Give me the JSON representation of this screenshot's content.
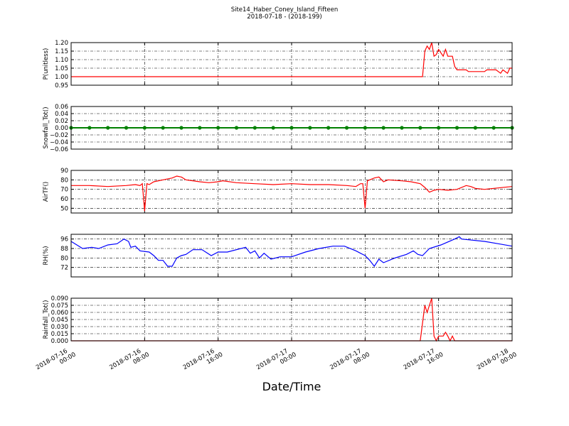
{
  "title": "Site14_Haber_Coney_Island_Fifteen",
  "subtitle": "2018-07-18 - (2018-199)",
  "xaxis": {
    "xlabel": "Date/Time",
    "xlim": [
      "2018-07-16 00:00",
      "2018-07-18 00:00"
    ],
    "xticks": [
      "2018-07-16 00:00",
      "2018-07-16 08:00",
      "2018-07-16 16:00",
      "2018-07-17 00:00",
      "2018-07-17 08:00",
      "2018-07-17 16:00",
      "2018-07-18 00:00"
    ],
    "grid": true
  },
  "chart_data": [
    {
      "type": "line",
      "ylabel": "P(unitless)",
      "color": "#ff0000",
      "ylim": [
        0.95,
        1.2
      ],
      "yticks": [
        0.95,
        {
          "value": 1.0,
          "label": "1.00"
        },
        1.05,
        {
          "value": 1.1,
          "label": "1.10"
        },
        1.15,
        {
          "value": 1.2,
          "label": "1.20"
        }
      ],
      "x": [
        "2018-07-16 00:00",
        "2018-07-17 14:15",
        "2018-07-17 14:30",
        "2018-07-17 14:45",
        "2018-07-17 15:00",
        "2018-07-17 15:15",
        "2018-07-17 15:30",
        "2018-07-17 15:45",
        "2018-07-17 16:00",
        "2018-07-17 16:15",
        "2018-07-17 16:30",
        "2018-07-17 16:45",
        "2018-07-17 17:00",
        "2018-07-17 17:30",
        "2018-07-17 17:45",
        "2018-07-17 18:00",
        "2018-07-17 19:00",
        "2018-07-17 19:15",
        "2018-07-17 21:00",
        "2018-07-17 21:15",
        "2018-07-17 22:15",
        "2018-07-17 22:45",
        "2018-07-17 23:00",
        "2018-07-17 23:30",
        "2018-07-17 23:45",
        "2018-07-18 00:00"
      ],
      "values": [
        1.0,
        1.0,
        1.15,
        1.18,
        1.16,
        1.2,
        1.12,
        1.13,
        1.16,
        1.14,
        1.12,
        1.16,
        1.12,
        1.12,
        1.06,
        1.04,
        1.04,
        1.03,
        1.03,
        1.04,
        1.04,
        1.02,
        1.04,
        1.02,
        1.05,
        1.05
      ]
    },
    {
      "type": "line",
      "ylabel": "Snowfall_Tot()",
      "color": "#008000",
      "marker": "o",
      "ylim": [
        -0.06,
        0.06
      ],
      "yticks": [
        {
          "value": -0.06,
          "label": "−0.06"
        },
        {
          "value": -0.04,
          "label": "−0.04"
        },
        {
          "value": -0.02,
          "label": "−0.02"
        },
        {
          "value": 0,
          "label": "0.00"
        },
        0.02,
        0.04,
        0.06
      ],
      "x": [
        "2018-07-16 00:00",
        "2018-07-16 02:00",
        "2018-07-16 04:00",
        "2018-07-16 06:00",
        "2018-07-16 08:00",
        "2018-07-16 10:00",
        "2018-07-16 12:00",
        "2018-07-16 14:00",
        "2018-07-16 16:00",
        "2018-07-16 18:00",
        "2018-07-16 20:00",
        "2018-07-16 22:00",
        "2018-07-17 00:00",
        "2018-07-17 02:00",
        "2018-07-17 04:00",
        "2018-07-17 06:00",
        "2018-07-17 08:00",
        "2018-07-17 10:00",
        "2018-07-17 12:00",
        "2018-07-17 14:00",
        "2018-07-17 16:00",
        "2018-07-17 18:00",
        "2018-07-17 20:00",
        "2018-07-17 22:00",
        "2018-07-18 00:00"
      ],
      "values": [
        0,
        0,
        0,
        0,
        0,
        0,
        0,
        0,
        0,
        0,
        0,
        0,
        0,
        0,
        0,
        0,
        0,
        0,
        0,
        0,
        0,
        0,
        0,
        0,
        0
      ]
    },
    {
      "type": "line",
      "ylabel": "AirTF()",
      "color": "#ff0000",
      "ylim": [
        45,
        90
      ],
      "yticks": [
        50,
        60,
        70,
        80,
        90
      ],
      "x": [
        "2018-07-16 00:00",
        "2018-07-16 02:00",
        "2018-07-16 04:00",
        "2018-07-16 06:00",
        "2018-07-16 07:00",
        "2018-07-16 07:30",
        "2018-07-16 07:45",
        "2018-07-16 08:00",
        "2018-07-16 08:15",
        "2018-07-16 08:30",
        "2018-07-16 09:00",
        "2018-07-16 10:00",
        "2018-07-16 11:00",
        "2018-07-16 11:30",
        "2018-07-16 12:00",
        "2018-07-16 12:30",
        "2018-07-16 14:00",
        "2018-07-16 15:00",
        "2018-07-16 16:00",
        "2018-07-16 16:30",
        "2018-07-16 18:00",
        "2018-07-16 20:00",
        "2018-07-16 22:00",
        "2018-07-17 00:00",
        "2018-07-17 02:00",
        "2018-07-17 04:00",
        "2018-07-17 06:00",
        "2018-07-17 07:00",
        "2018-07-17 07:30",
        "2018-07-17 07:45",
        "2018-07-17 08:00",
        "2018-07-17 08:15",
        "2018-07-17 09:00",
        "2018-07-17 09:30",
        "2018-07-17 10:00",
        "2018-07-17 10:30",
        "2018-07-17 12:00",
        "2018-07-17 13:00",
        "2018-07-17 14:00",
        "2018-07-17 14:30",
        "2018-07-17 15:00",
        "2018-07-17 15:30",
        "2018-07-17 16:00",
        "2018-07-17 17:00",
        "2018-07-17 18:00",
        "2018-07-17 19:00",
        "2018-07-17 19:30",
        "2018-07-17 20:00",
        "2018-07-17 21:00",
        "2018-07-17 22:00",
        "2018-07-18 00:00"
      ],
      "values": [
        74,
        74,
        73,
        74,
        75,
        74,
        76,
        47,
        76,
        75,
        78,
        80,
        82,
        84,
        83,
        80,
        78,
        77,
        78,
        79,
        77,
        76,
        75,
        76,
        75,
        75,
        74,
        73,
        76,
        76,
        50,
        79,
        82,
        83,
        78,
        80,
        79,
        78,
        76,
        72,
        67,
        69,
        70,
        69,
        70,
        74,
        73,
        71,
        70,
        71,
        73
      ]
    },
    {
      "type": "line",
      "ylabel": "RH(%)",
      "color": "#0000ff",
      "ylim": [
        64,
        100
      ],
      "yticks": [
        72,
        80,
        88,
        96
      ],
      "x": [
        "2018-07-16 00:00",
        "2018-07-16 01:15",
        "2018-07-16 02:15",
        "2018-07-16 03:00",
        "2018-07-16 04:00",
        "2018-07-16 05:00",
        "2018-07-16 05:45",
        "2018-07-16 06:15",
        "2018-07-16 06:30",
        "2018-07-16 07:00",
        "2018-07-16 07:30",
        "2018-07-16 08:30",
        "2018-07-16 09:00",
        "2018-07-16 09:30",
        "2018-07-16 10:00",
        "2018-07-16 10:30",
        "2018-07-16 11:00",
        "2018-07-16 11:30",
        "2018-07-16 12:00",
        "2018-07-16 12:30",
        "2018-07-16 13:15",
        "2018-07-16 14:15",
        "2018-07-16 15:15",
        "2018-07-16 16:00",
        "2018-07-16 17:00",
        "2018-07-16 19:00",
        "2018-07-16 19:30",
        "2018-07-16 20:00",
        "2018-07-16 20:30",
        "2018-07-16 21:00",
        "2018-07-16 21:45",
        "2018-07-16 22:45",
        "2018-07-17 00:00",
        "2018-07-17 01:30",
        "2018-07-17 03:00",
        "2018-07-17 04:30",
        "2018-07-17 05:45",
        "2018-07-17 07:00",
        "2018-07-17 08:00",
        "2018-07-17 08:30",
        "2018-07-17 09:00",
        "2018-07-17 09:30",
        "2018-07-17 10:00",
        "2018-07-17 11:15",
        "2018-07-17 12:30",
        "2018-07-17 13:15",
        "2018-07-17 13:45",
        "2018-07-17 14:15",
        "2018-07-17 15:00",
        "2018-07-17 16:15",
        "2018-07-17 17:45",
        "2018-07-17 18:15",
        "2018-07-17 18:30",
        "2018-07-17 21:00",
        "2018-07-17 22:30",
        "2018-07-18 00:00"
      ],
      "values": [
        94,
        88,
        89,
        88,
        91,
        92,
        96,
        94,
        89,
        90,
        86,
        85,
        82,
        78,
        78,
        73,
        73,
        80,
        82,
        83,
        87,
        87,
        82,
        85,
        85,
        89,
        84,
        86,
        80,
        84,
        79,
        81,
        81,
        85,
        88,
        90,
        90,
        86,
        82,
        78,
        73,
        79,
        76,
        80,
        83,
        86,
        83,
        82,
        88,
        91,
        96,
        98,
        96,
        94,
        92,
        90
      ]
    },
    {
      "type": "line",
      "ylabel": "Rainfall_Tot()",
      "color": "#ff0000",
      "ylim": [
        0,
        0.09
      ],
      "yticks": [
        {
          "value": 0,
          "label": "0.000"
        },
        0.015,
        {
          "value": 0.03,
          "label": "0.030"
        },
        0.045,
        {
          "value": 0.06,
          "label": "0.060"
        },
        0.075,
        {
          "value": 0.09,
          "label": "0.090"
        }
      ],
      "x": [
        "2018-07-16 00:00",
        "2018-07-17 14:00",
        "2018-07-17 14:30",
        "2018-07-17 14:45",
        "2018-07-17 15:15",
        "2018-07-17 15:30",
        "2018-07-17 15:45",
        "2018-07-17 16:00",
        "2018-07-17 16:30",
        "2018-07-17 16:45",
        "2018-07-17 17:00",
        "2018-07-17 17:15",
        "2018-07-17 17:30",
        "2018-07-17 17:45",
        "2018-07-18 00:00"
      ],
      "values": [
        0,
        0,
        0.075,
        0.06,
        0.09,
        0.01,
        0,
        0.01,
        0.01,
        0.018,
        0.01,
        0,
        0.01,
        0,
        0
      ]
    }
  ]
}
